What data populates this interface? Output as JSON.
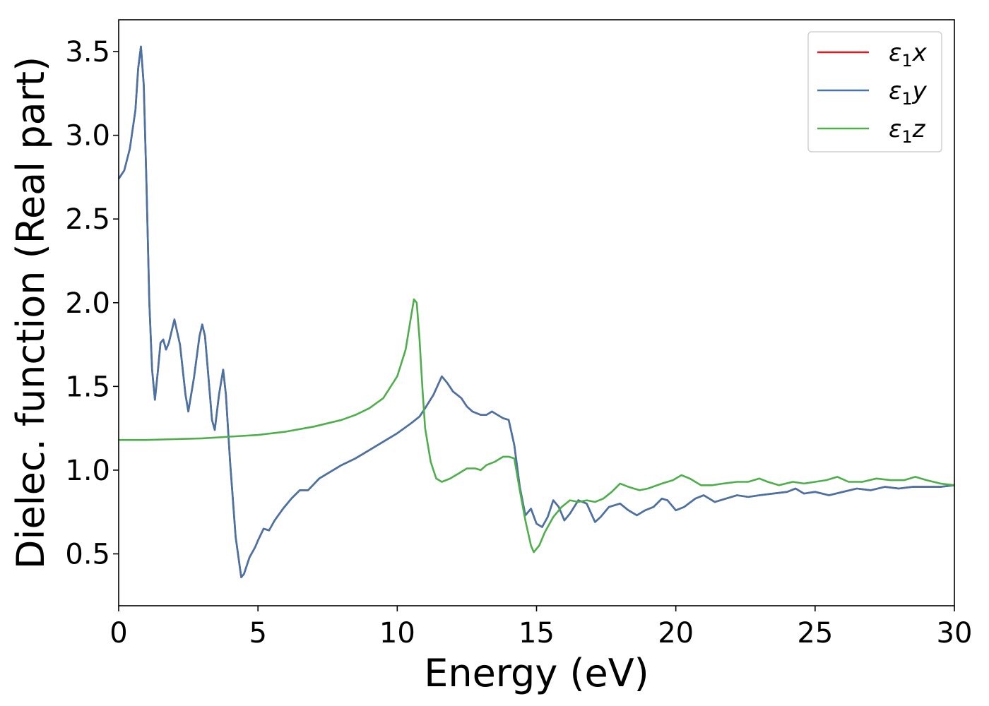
{
  "chart_data": {
    "type": "line",
    "title": "",
    "xlabel": "Energy (eV)",
    "ylabel": "Dielec. function (Real part)",
    "xlim": [
      0,
      30
    ],
    "ylim": [
      0.19,
      3.69
    ],
    "xticks": [
      0,
      5,
      10,
      15,
      20,
      25,
      30
    ],
    "xtick_labels": [
      "0",
      "5",
      "10",
      "15",
      "20",
      "25",
      "30"
    ],
    "yticks": [
      0.5,
      1.0,
      1.5,
      2.0,
      2.5,
      3.0,
      3.5
    ],
    "ytick_labels": [
      "0.5",
      "1.0",
      "1.5",
      "2.0",
      "2.5",
      "3.0",
      "3.5"
    ],
    "grid": false,
    "legend_position": "top-right",
    "series": [
      {
        "name": "ε₁x",
        "legend_main": "ε",
        "legend_sub": "1",
        "legend_var": "x",
        "color": "#e41a1c",
        "points": [
          [
            0,
            2.74
          ],
          [
            0.2,
            2.79
          ],
          [
            0.4,
            2.92
          ],
          [
            0.6,
            3.15
          ],
          [
            0.7,
            3.4
          ],
          [
            0.8,
            3.53
          ],
          [
            0.9,
            3.3
          ],
          [
            1.0,
            2.7
          ],
          [
            1.1,
            2.0
          ],
          [
            1.2,
            1.6
          ],
          [
            1.3,
            1.42
          ],
          [
            1.4,
            1.58
          ],
          [
            1.5,
            1.76
          ],
          [
            1.6,
            1.78
          ],
          [
            1.7,
            1.72
          ],
          [
            1.8,
            1.76
          ],
          [
            2.0,
            1.9
          ],
          [
            2.2,
            1.75
          ],
          [
            2.4,
            1.45
          ],
          [
            2.5,
            1.35
          ],
          [
            2.7,
            1.55
          ],
          [
            2.9,
            1.8
          ],
          [
            3.0,
            1.87
          ],
          [
            3.1,
            1.8
          ],
          [
            3.2,
            1.6
          ],
          [
            3.35,
            1.3
          ],
          [
            3.45,
            1.24
          ],
          [
            3.6,
            1.45
          ],
          [
            3.75,
            1.6
          ],
          [
            3.85,
            1.45
          ],
          [
            4.0,
            1.05
          ],
          [
            4.2,
            0.6
          ],
          [
            4.4,
            0.36
          ],
          [
            4.5,
            0.38
          ],
          [
            4.7,
            0.48
          ],
          [
            4.9,
            0.54
          ],
          [
            5.0,
            0.58
          ],
          [
            5.2,
            0.65
          ],
          [
            5.4,
            0.64
          ],
          [
            5.6,
            0.7
          ],
          [
            5.9,
            0.77
          ],
          [
            6.2,
            0.83
          ],
          [
            6.5,
            0.88
          ],
          [
            6.8,
            0.88
          ],
          [
            7.2,
            0.95
          ],
          [
            7.6,
            0.99
          ],
          [
            8.0,
            1.03
          ],
          [
            8.5,
            1.07
          ],
          [
            9.0,
            1.12
          ],
          [
            9.5,
            1.17
          ],
          [
            10.0,
            1.22
          ],
          [
            10.5,
            1.28
          ],
          [
            10.8,
            1.32
          ],
          [
            11.0,
            1.37
          ],
          [
            11.3,
            1.45
          ],
          [
            11.6,
            1.56
          ],
          [
            11.8,
            1.52
          ],
          [
            12.0,
            1.47
          ],
          [
            12.3,
            1.43
          ],
          [
            12.5,
            1.38
          ],
          [
            12.7,
            1.35
          ],
          [
            13.0,
            1.33
          ],
          [
            13.2,
            1.33
          ],
          [
            13.4,
            1.35
          ],
          [
            13.6,
            1.33
          ],
          [
            13.8,
            1.31
          ],
          [
            14.0,
            1.3
          ],
          [
            14.2,
            1.15
          ],
          [
            14.4,
            0.9
          ],
          [
            14.6,
            0.73
          ],
          [
            14.8,
            0.77
          ],
          [
            15.0,
            0.68
          ],
          [
            15.2,
            0.66
          ],
          [
            15.4,
            0.72
          ],
          [
            15.6,
            0.82
          ],
          [
            15.8,
            0.78
          ],
          [
            16.0,
            0.7
          ],
          [
            16.2,
            0.74
          ],
          [
            16.5,
            0.82
          ],
          [
            16.8,
            0.8
          ],
          [
            17.1,
            0.69
          ],
          [
            17.3,
            0.72
          ],
          [
            17.6,
            0.78
          ],
          [
            18.0,
            0.8
          ],
          [
            18.3,
            0.76
          ],
          [
            18.6,
            0.73
          ],
          [
            18.9,
            0.76
          ],
          [
            19.2,
            0.78
          ],
          [
            19.5,
            0.83
          ],
          [
            19.7,
            0.82
          ],
          [
            20.0,
            0.76
          ],
          [
            20.3,
            0.78
          ],
          [
            20.7,
            0.83
          ],
          [
            21.0,
            0.85
          ],
          [
            21.4,
            0.81
          ],
          [
            21.8,
            0.83
          ],
          [
            22.2,
            0.85
          ],
          [
            22.6,
            0.84
          ],
          [
            23.0,
            0.85
          ],
          [
            23.5,
            0.86
          ],
          [
            24.0,
            0.87
          ],
          [
            24.3,
            0.89
          ],
          [
            24.6,
            0.86
          ],
          [
            25.0,
            0.87
          ],
          [
            25.5,
            0.85
          ],
          [
            26.0,
            0.87
          ],
          [
            26.5,
            0.89
          ],
          [
            27.0,
            0.88
          ],
          [
            27.5,
            0.9
          ],
          [
            28.0,
            0.89
          ],
          [
            28.5,
            0.9
          ],
          [
            29.0,
            0.9
          ],
          [
            29.5,
            0.9
          ],
          [
            30.0,
            0.91
          ]
        ]
      },
      {
        "name": "ε₁y",
        "legend_main": "ε",
        "legend_sub": "1",
        "legend_var": "y",
        "color": "#4574a8",
        "points": [
          [
            0,
            2.74
          ],
          [
            0.2,
            2.79
          ],
          [
            0.4,
            2.92
          ],
          [
            0.6,
            3.15
          ],
          [
            0.7,
            3.4
          ],
          [
            0.8,
            3.53
          ],
          [
            0.9,
            3.3
          ],
          [
            1.0,
            2.7
          ],
          [
            1.1,
            2.0
          ],
          [
            1.2,
            1.6
          ],
          [
            1.3,
            1.42
          ],
          [
            1.4,
            1.58
          ],
          [
            1.5,
            1.76
          ],
          [
            1.6,
            1.78
          ],
          [
            1.7,
            1.72
          ],
          [
            1.8,
            1.76
          ],
          [
            2.0,
            1.9
          ],
          [
            2.2,
            1.75
          ],
          [
            2.4,
            1.45
          ],
          [
            2.5,
            1.35
          ],
          [
            2.7,
            1.55
          ],
          [
            2.9,
            1.8
          ],
          [
            3.0,
            1.87
          ],
          [
            3.1,
            1.8
          ],
          [
            3.2,
            1.6
          ],
          [
            3.35,
            1.3
          ],
          [
            3.45,
            1.24
          ],
          [
            3.6,
            1.45
          ],
          [
            3.75,
            1.6
          ],
          [
            3.85,
            1.45
          ],
          [
            4.0,
            1.05
          ],
          [
            4.2,
            0.6
          ],
          [
            4.4,
            0.36
          ],
          [
            4.5,
            0.38
          ],
          [
            4.7,
            0.48
          ],
          [
            4.9,
            0.54
          ],
          [
            5.0,
            0.58
          ],
          [
            5.2,
            0.65
          ],
          [
            5.4,
            0.64
          ],
          [
            5.6,
            0.7
          ],
          [
            5.9,
            0.77
          ],
          [
            6.2,
            0.83
          ],
          [
            6.5,
            0.88
          ],
          [
            6.8,
            0.88
          ],
          [
            7.2,
            0.95
          ],
          [
            7.6,
            0.99
          ],
          [
            8.0,
            1.03
          ],
          [
            8.5,
            1.07
          ],
          [
            9.0,
            1.12
          ],
          [
            9.5,
            1.17
          ],
          [
            10.0,
            1.22
          ],
          [
            10.5,
            1.28
          ],
          [
            10.8,
            1.32
          ],
          [
            11.0,
            1.37
          ],
          [
            11.3,
            1.45
          ],
          [
            11.6,
            1.56
          ],
          [
            11.8,
            1.52
          ],
          [
            12.0,
            1.47
          ],
          [
            12.3,
            1.43
          ],
          [
            12.5,
            1.38
          ],
          [
            12.7,
            1.35
          ],
          [
            13.0,
            1.33
          ],
          [
            13.2,
            1.33
          ],
          [
            13.4,
            1.35
          ],
          [
            13.6,
            1.33
          ],
          [
            13.8,
            1.31
          ],
          [
            14.0,
            1.3
          ],
          [
            14.2,
            1.15
          ],
          [
            14.4,
            0.9
          ],
          [
            14.6,
            0.73
          ],
          [
            14.8,
            0.77
          ],
          [
            15.0,
            0.68
          ],
          [
            15.2,
            0.66
          ],
          [
            15.4,
            0.72
          ],
          [
            15.6,
            0.82
          ],
          [
            15.8,
            0.78
          ],
          [
            16.0,
            0.7
          ],
          [
            16.2,
            0.74
          ],
          [
            16.5,
            0.82
          ],
          [
            16.8,
            0.8
          ],
          [
            17.1,
            0.69
          ],
          [
            17.3,
            0.72
          ],
          [
            17.6,
            0.78
          ],
          [
            18.0,
            0.8
          ],
          [
            18.3,
            0.76
          ],
          [
            18.6,
            0.73
          ],
          [
            18.9,
            0.76
          ],
          [
            19.2,
            0.78
          ],
          [
            19.5,
            0.83
          ],
          [
            19.7,
            0.82
          ],
          [
            20.0,
            0.76
          ],
          [
            20.3,
            0.78
          ],
          [
            20.7,
            0.83
          ],
          [
            21.0,
            0.85
          ],
          [
            21.4,
            0.81
          ],
          [
            21.8,
            0.83
          ],
          [
            22.2,
            0.85
          ],
          [
            22.6,
            0.84
          ],
          [
            23.0,
            0.85
          ],
          [
            23.5,
            0.86
          ],
          [
            24.0,
            0.87
          ],
          [
            24.3,
            0.89
          ],
          [
            24.6,
            0.86
          ],
          [
            25.0,
            0.87
          ],
          [
            25.5,
            0.85
          ],
          [
            26.0,
            0.87
          ],
          [
            26.5,
            0.89
          ],
          [
            27.0,
            0.88
          ],
          [
            27.5,
            0.9
          ],
          [
            28.0,
            0.89
          ],
          [
            28.5,
            0.9
          ],
          [
            29.0,
            0.9
          ],
          [
            29.5,
            0.9
          ],
          [
            30.0,
            0.91
          ]
        ]
      },
      {
        "name": "ε₁z",
        "legend_main": "ε",
        "legend_sub": "1",
        "legend_var": "z",
        "color": "#4daf4a",
        "points": [
          [
            0,
            1.18
          ],
          [
            1,
            1.18
          ],
          [
            2,
            1.185
          ],
          [
            3,
            1.19
          ],
          [
            4,
            1.2
          ],
          [
            5,
            1.21
          ],
          [
            6,
            1.23
          ],
          [
            7,
            1.26
          ],
          [
            8,
            1.3
          ],
          [
            8.5,
            1.33
          ],
          [
            9,
            1.37
          ],
          [
            9.5,
            1.43
          ],
          [
            10.0,
            1.56
          ],
          [
            10.3,
            1.72
          ],
          [
            10.5,
            1.92
          ],
          [
            10.6,
            2.02
          ],
          [
            10.7,
            2.0
          ],
          [
            10.8,
            1.78
          ],
          [
            10.9,
            1.5
          ],
          [
            11.0,
            1.25
          ],
          [
            11.2,
            1.05
          ],
          [
            11.4,
            0.95
          ],
          [
            11.6,
            0.93
          ],
          [
            11.9,
            0.95
          ],
          [
            12.2,
            0.98
          ],
          [
            12.5,
            1.01
          ],
          [
            12.8,
            1.01
          ],
          [
            13.0,
            1.0
          ],
          [
            13.2,
            1.03
          ],
          [
            13.5,
            1.05
          ],
          [
            13.8,
            1.08
          ],
          [
            14.0,
            1.08
          ],
          [
            14.2,
            1.07
          ],
          [
            14.4,
            0.88
          ],
          [
            14.6,
            0.7
          ],
          [
            14.8,
            0.55
          ],
          [
            14.9,
            0.51
          ],
          [
            15.1,
            0.55
          ],
          [
            15.3,
            0.63
          ],
          [
            15.6,
            0.72
          ],
          [
            15.9,
            0.78
          ],
          [
            16.2,
            0.82
          ],
          [
            16.5,
            0.81
          ],
          [
            16.8,
            0.82
          ],
          [
            17.1,
            0.81
          ],
          [
            17.4,
            0.83
          ],
          [
            17.7,
            0.87
          ],
          [
            18.0,
            0.92
          ],
          [
            18.3,
            0.9
          ],
          [
            18.7,
            0.88
          ],
          [
            19.0,
            0.89
          ],
          [
            19.5,
            0.92
          ],
          [
            19.9,
            0.94
          ],
          [
            20.2,
            0.97
          ],
          [
            20.5,
            0.95
          ],
          [
            20.9,
            0.91
          ],
          [
            21.3,
            0.91
          ],
          [
            21.7,
            0.92
          ],
          [
            22.2,
            0.93
          ],
          [
            22.6,
            0.93
          ],
          [
            23.0,
            0.95
          ],
          [
            23.3,
            0.93
          ],
          [
            23.7,
            0.91
          ],
          [
            24.2,
            0.93
          ],
          [
            24.6,
            0.92
          ],
          [
            25.0,
            0.93
          ],
          [
            25.4,
            0.94
          ],
          [
            25.8,
            0.96
          ],
          [
            26.2,
            0.93
          ],
          [
            26.7,
            0.93
          ],
          [
            27.2,
            0.95
          ],
          [
            27.7,
            0.94
          ],
          [
            28.2,
            0.94
          ],
          [
            28.6,
            0.96
          ],
          [
            29.0,
            0.94
          ],
          [
            29.5,
            0.92
          ],
          [
            30.0,
            0.91
          ]
        ]
      }
    ]
  }
}
